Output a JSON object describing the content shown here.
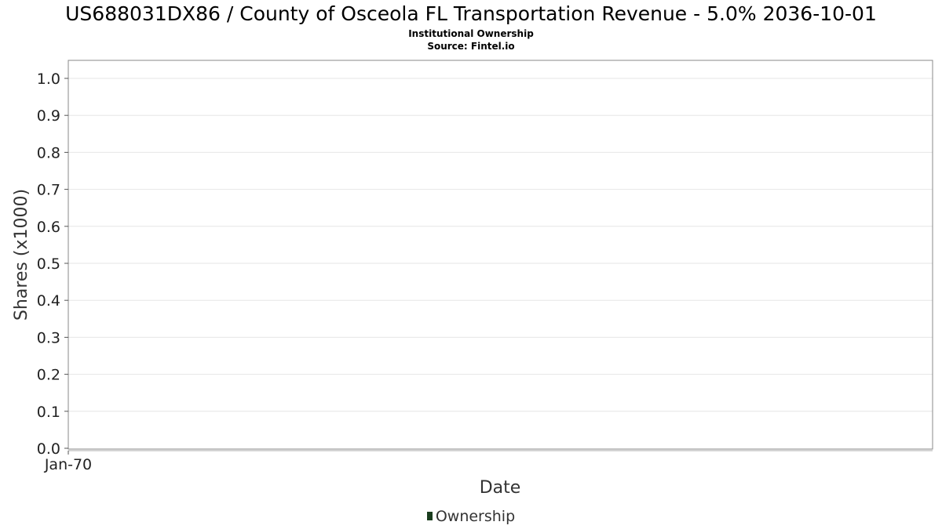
{
  "chart_data": {
    "type": "bar",
    "title": "US688031DX86 / County of Osceola FL Transportation Revenue - 5.0% 2036-10-01",
    "subtitle": [
      "Institutional Ownership",
      "Source: Fintel.io"
    ],
    "xlabel": "Date",
    "ylabel": "Shares (x1000)",
    "ylim": [
      0.0,
      1.0
    ],
    "y_ticks": [
      "0.0",
      "0.1",
      "0.2",
      "0.3",
      "0.4",
      "0.5",
      "0.6",
      "0.7",
      "0.8",
      "0.9",
      "1.0"
    ],
    "x_ticks": [
      "Jan-70"
    ],
    "grid": true,
    "legend_position": "bottom",
    "series": [
      {
        "name": "Ownership",
        "color": "#1a3d1e",
        "values": []
      }
    ]
  }
}
